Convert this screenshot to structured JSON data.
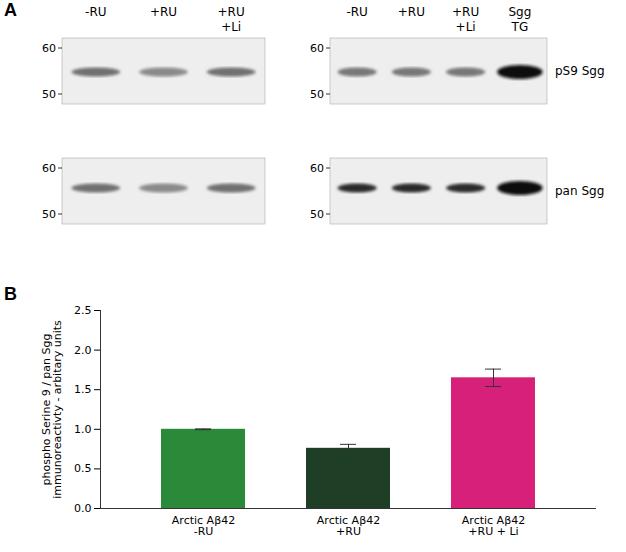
{
  "blot": {
    "panel": "A",
    "lanes": [
      [
        "-RU",
        "+RU",
        "+RU +Li"
      ],
      [
        "-RU",
        "+RU",
        "+RU +Li",
        "Sgg TG"
      ]
    ],
    "rows": [
      "pS9 Sgg",
      "pan Sgg"
    ],
    "markers": [
      60,
      50
    ]
  },
  "chart_data": {
    "panel": "B",
    "type": "bar",
    "categories": [
      "Arctic Aβ42 -RU",
      "Arctic Aβ42 +RU",
      "Arctic Aβ42 +RU + Li"
    ],
    "values": [
      1.0,
      0.76,
      1.65
    ],
    "errors": [
      0.005,
      0.05,
      0.11
    ],
    "colors": [
      "#2a8a3a",
      "#1e3f26",
      "#d6207a"
    ],
    "y_label": "phospho Serine 9 / pan Sgg\nimmunoreactivty - arbitary units",
    "ylim": [
      0,
      2.5
    ],
    "yticks": [
      {
        "value": 0,
        "label": "0.0"
      },
      0.5,
      {
        "value": 1,
        "label": "1.0"
      },
      1.5,
      {
        "value": 2,
        "label": "2.0"
      },
      2.5
    ]
  }
}
